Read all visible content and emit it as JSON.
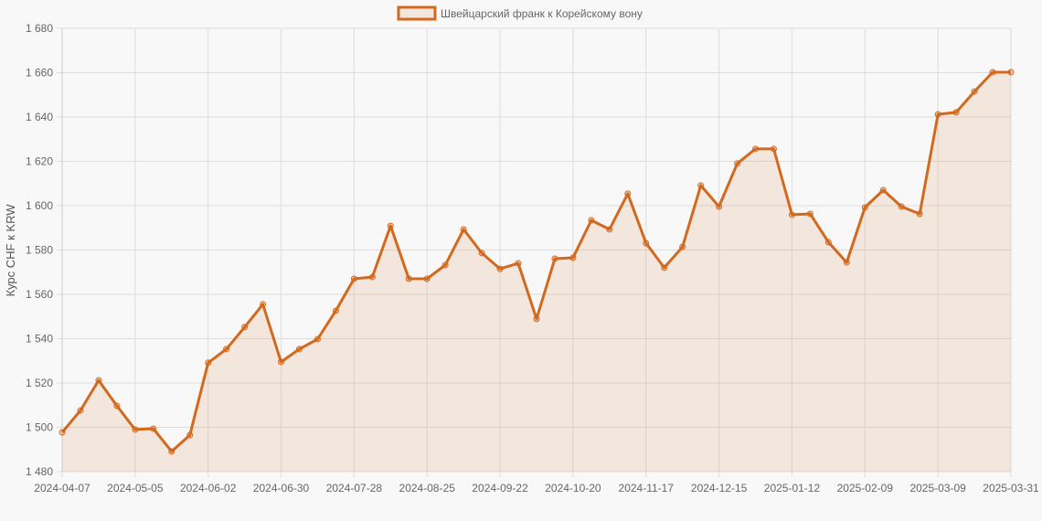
{
  "chart_data": {
    "type": "area",
    "title": "",
    "legend": {
      "position": "top",
      "entries": [
        "Швейцарский франк к Корейскому вону"
      ]
    },
    "xlabel": "",
    "ylabel": "Курс CHF к KRW",
    "ylim": [
      1480,
      1680
    ],
    "y_ticks": [
      1480,
      1500,
      1520,
      1540,
      1560,
      1580,
      1600,
      1620,
      1640,
      1660,
      1680
    ],
    "y_tick_labels": [
      "1 480",
      "1 500",
      "1 520",
      "1 540",
      "1 560",
      "1 580",
      "1 600",
      "1 620",
      "1 640",
      "1 660",
      "1 680"
    ],
    "x_tick_labels": [
      "2024-04-07",
      "2024-05-05",
      "2024-06-02",
      "2024-06-30",
      "2024-07-28",
      "2024-08-25",
      "2024-09-22",
      "2024-10-20",
      "2024-11-17",
      "2024-12-15",
      "2025-01-12",
      "2025-02-09",
      "2025-03-09",
      "2025-03-31"
    ],
    "x_tick_indices": [
      0,
      4,
      8,
      12,
      16,
      20,
      24,
      28,
      32,
      36,
      40,
      44,
      48,
      52
    ],
    "grid": true,
    "colors": {
      "line": "#d2691e",
      "fill": "rgba(210,105,30,0.12)",
      "grid": "#dddddd",
      "background": "#f8f8f8"
    },
    "series": [
      {
        "name": "Швейцарский франк к Корейскому вону",
        "values": [
          1497.7,
          1507.6,
          1521.2,
          1509.7,
          1499.0,
          1499.4,
          1489.1,
          1496.5,
          1529.1,
          1535.3,
          1545.2,
          1555.5,
          1529.5,
          1535.3,
          1539.8,
          1552.6,
          1567.0,
          1567.8,
          1590.9,
          1567.0,
          1567.0,
          1573.2,
          1589.3,
          1578.6,
          1571.5,
          1574.0,
          1548.9,
          1576.1,
          1576.5,
          1593.4,
          1589.3,
          1605.4,
          1583.1,
          1572.0,
          1581.4,
          1609.1,
          1599.6,
          1619.0,
          1625.6,
          1625.6,
          1595.9,
          1596.3,
          1583.5,
          1574.4,
          1599.2,
          1607.0,
          1599.6,
          1596.3,
          1641.2,
          1642.1,
          1651.5,
          1660.2,
          1660.2
        ]
      }
    ]
  }
}
